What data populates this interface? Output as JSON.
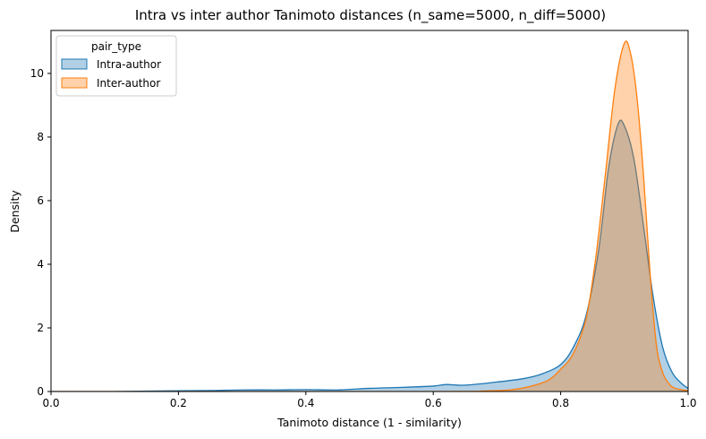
{
  "chart_data": {
    "type": "area",
    "title": "Intra vs inter author Tanimoto distances (n_same=5000, n_diff=5000)",
    "xlabel": "Tanimoto distance (1 - similarity)",
    "ylabel": "Density",
    "xlim": [
      0.0,
      1.0
    ],
    "ylim": [
      0.0,
      11.35
    ],
    "xticks": [
      0.0,
      0.2,
      0.4,
      0.6,
      0.8,
      1.0
    ],
    "xtick_labels": [
      "0.0",
      "0.2",
      "0.4",
      "0.6",
      "0.8",
      "1.0"
    ],
    "yticks": [
      0,
      2,
      4,
      6,
      8,
      10
    ],
    "ytick_labels": [
      "0",
      "2",
      "4",
      "6",
      "8",
      "10"
    ],
    "grid": false,
    "legend": {
      "title": "pair_type",
      "placement": "upper-left"
    },
    "series": [
      {
        "name": "Intra-author",
        "line_color": "#1f77b4",
        "fill_color": "#1f77b4",
        "points": [
          [
            0.0,
            0.0
          ],
          [
            0.1,
            0.0
          ],
          [
            0.18,
            0.02
          ],
          [
            0.25,
            0.03
          ],
          [
            0.3,
            0.05
          ],
          [
            0.35,
            0.05
          ],
          [
            0.4,
            0.06
          ],
          [
            0.45,
            0.05
          ],
          [
            0.5,
            0.1
          ],
          [
            0.55,
            0.13
          ],
          [
            0.6,
            0.17
          ],
          [
            0.62,
            0.22
          ],
          [
            0.65,
            0.2
          ],
          [
            0.7,
            0.3
          ],
          [
            0.74,
            0.4
          ],
          [
            0.77,
            0.55
          ],
          [
            0.8,
            0.85
          ],
          [
            0.82,
            1.4
          ],
          [
            0.84,
            2.4
          ],
          [
            0.86,
            4.5
          ],
          [
            0.875,
            7.0
          ],
          [
            0.89,
            8.4
          ],
          [
            0.9,
            8.35
          ],
          [
            0.915,
            7.3
          ],
          [
            0.93,
            5.2
          ],
          [
            0.945,
            3.0
          ],
          [
            0.96,
            1.4
          ],
          [
            0.975,
            0.6
          ],
          [
            0.99,
            0.25
          ],
          [
            1.0,
            0.1
          ]
        ]
      },
      {
        "name": "Inter-author",
        "line_color": "#ff7f0e",
        "fill_color": "#ff7f0e",
        "points": [
          [
            0.0,
            0.0
          ],
          [
            0.6,
            0.0
          ],
          [
            0.68,
            0.02
          ],
          [
            0.72,
            0.05
          ],
          [
            0.75,
            0.15
          ],
          [
            0.78,
            0.35
          ],
          [
            0.8,
            0.7
          ],
          [
            0.82,
            1.2
          ],
          [
            0.84,
            2.3
          ],
          [
            0.855,
            4.2
          ],
          [
            0.87,
            6.8
          ],
          [
            0.885,
            9.5
          ],
          [
            0.9,
            10.95
          ],
          [
            0.91,
            10.6
          ],
          [
            0.92,
            9.2
          ],
          [
            0.93,
            6.8
          ],
          [
            0.94,
            3.8
          ],
          [
            0.95,
            1.5
          ],
          [
            0.96,
            0.6
          ],
          [
            0.97,
            0.25
          ],
          [
            0.98,
            0.1
          ],
          [
            1.0,
            0.02
          ]
        ]
      }
    ]
  }
}
